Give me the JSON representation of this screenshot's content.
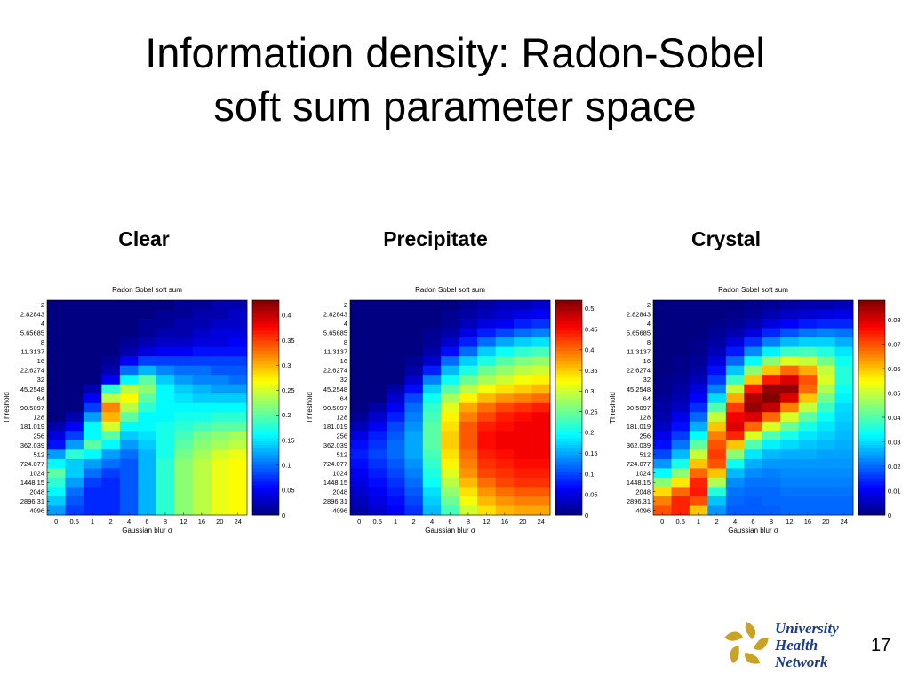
{
  "slide": {
    "title": "Information density: Radon-Sobel\nsoft sum parameter space",
    "page_number": "17",
    "logo": {
      "line1": "University",
      "line2": "Health",
      "line3": "Network",
      "icon": "uhn-emblem-icon"
    }
  },
  "panels": [
    {
      "label": "Clear"
    },
    {
      "label": "Precipitate"
    },
    {
      "label": "Crystal"
    }
  ],
  "chart_data": [
    {
      "type": "heatmap",
      "title": "Radon Sobel soft sum",
      "xlabel": "Gaussian blur σ",
      "ylabel": "Threshold",
      "x_categories": [
        "0",
        "0.5",
        "1",
        "2",
        "4",
        "6",
        "8",
        "12",
        "16",
        "20",
        "24"
      ],
      "y_categories": [
        "2",
        "2.82843",
        "4",
        "5.65685",
        "8",
        "11.3137",
        "16",
        "22.6274",
        "32",
        "45.2548",
        "64",
        "90.5097",
        "128",
        "181.019",
        "256",
        "362.039",
        "512",
        "724.077",
        "1024",
        "1448.15",
        "2048",
        "2896.31",
        "4096"
      ],
      "colorbar": {
        "ticks": [
          "0",
          "0.05",
          "0.1",
          "0.15",
          "0.2",
          "0.25",
          "0.3",
          "0.35",
          "0.4"
        ],
        "tick_values": [
          0,
          0.05,
          0.1,
          0.15,
          0.2,
          0.25,
          0.3,
          0.35,
          0.4
        ],
        "min": 0,
        "max": 0.43
      },
      "colors": {
        "low": "#00008f",
        "high": "#800000"
      },
      "values": [
        [
          0.0,
          0.0,
          0.0,
          0.0,
          0.0,
          0.0,
          0.0,
          0.01,
          0.01,
          0.02,
          0.02
        ],
        [
          0.0,
          0.0,
          0.0,
          0.0,
          0.0,
          0.0,
          0.01,
          0.01,
          0.02,
          0.02,
          0.03
        ],
        [
          0.0,
          0.0,
          0.0,
          0.0,
          0.0,
          0.01,
          0.01,
          0.02,
          0.02,
          0.03,
          0.03
        ],
        [
          0.0,
          0.0,
          0.0,
          0.0,
          0.0,
          0.01,
          0.02,
          0.02,
          0.03,
          0.04,
          0.04
        ],
        [
          0.0,
          0.0,
          0.0,
          0.0,
          0.01,
          0.02,
          0.03,
          0.03,
          0.04,
          0.04,
          0.05
        ],
        [
          0.0,
          0.0,
          0.0,
          0.0,
          0.02,
          0.04,
          0.05,
          0.05,
          0.06,
          0.06,
          0.06
        ],
        [
          0.0,
          0.0,
          0.0,
          0.01,
          0.05,
          0.08,
          0.08,
          0.08,
          0.08,
          0.08,
          0.08
        ],
        [
          0.0,
          0.0,
          0.0,
          0.02,
          0.1,
          0.13,
          0.11,
          0.1,
          0.1,
          0.09,
          0.09
        ],
        [
          0.0,
          0.0,
          0.0,
          0.05,
          0.16,
          0.2,
          0.14,
          0.12,
          0.11,
          0.11,
          0.1
        ],
        [
          0.0,
          0.0,
          0.02,
          0.18,
          0.24,
          0.22,
          0.16,
          0.14,
          0.13,
          0.12,
          0.12
        ],
        [
          0.0,
          0.0,
          0.05,
          0.24,
          0.27,
          0.2,
          0.16,
          0.15,
          0.14,
          0.14,
          0.14
        ],
        [
          0.0,
          0.0,
          0.08,
          0.32,
          0.24,
          0.18,
          0.16,
          0.16,
          0.16,
          0.16,
          0.16
        ],
        [
          0.0,
          0.02,
          0.12,
          0.3,
          0.2,
          0.16,
          0.16,
          0.17,
          0.17,
          0.18,
          0.18
        ],
        [
          0.02,
          0.05,
          0.16,
          0.25,
          0.16,
          0.16,
          0.17,
          0.18,
          0.19,
          0.2,
          0.2
        ],
        [
          0.04,
          0.08,
          0.16,
          0.2,
          0.14,
          0.15,
          0.17,
          0.19,
          0.21,
          0.22,
          0.23
        ],
        [
          0.06,
          0.12,
          0.2,
          0.16,
          0.12,
          0.14,
          0.17,
          0.2,
          0.22,
          0.23,
          0.24
        ],
        [
          0.12,
          0.18,
          0.16,
          0.12,
          0.1,
          0.13,
          0.17,
          0.21,
          0.23,
          0.25,
          0.26
        ],
        [
          0.16,
          0.14,
          0.12,
          0.1,
          0.09,
          0.13,
          0.18,
          0.22,
          0.24,
          0.26,
          0.27
        ],
        [
          0.2,
          0.14,
          0.1,
          0.08,
          0.09,
          0.13,
          0.18,
          0.22,
          0.24,
          0.26,
          0.27
        ],
        [
          0.18,
          0.12,
          0.08,
          0.07,
          0.09,
          0.13,
          0.18,
          0.22,
          0.24,
          0.26,
          0.27
        ],
        [
          0.16,
          0.1,
          0.07,
          0.07,
          0.09,
          0.13,
          0.18,
          0.22,
          0.24,
          0.26,
          0.27
        ],
        [
          0.14,
          0.09,
          0.07,
          0.07,
          0.09,
          0.13,
          0.18,
          0.22,
          0.24,
          0.26,
          0.27
        ],
        [
          0.12,
          0.08,
          0.07,
          0.07,
          0.09,
          0.13,
          0.18,
          0.22,
          0.24,
          0.26,
          0.27
        ]
      ]
    },
    {
      "type": "heatmap",
      "title": "Radon Sobel soft sum",
      "xlabel": "Gaussian blur σ",
      "ylabel": "Threshold",
      "x_categories": [
        "0",
        "0.5",
        "1",
        "2",
        "4",
        "6",
        "8",
        "12",
        "16",
        "20",
        "24"
      ],
      "y_categories": [
        "2",
        "2.82843",
        "4",
        "5.65685",
        "8",
        "11.3137",
        "16",
        "22.6274",
        "32",
        "45.2548",
        "64",
        "90.5097",
        "128",
        "181.019",
        "256",
        "362.039",
        "512",
        "724.077",
        "1024",
        "1448.15",
        "2048",
        "2896.31",
        "4096"
      ],
      "colorbar": {
        "ticks": [
          "0",
          "0.05",
          "0.1",
          "0.15",
          "0.2",
          "0.25",
          "0.3",
          "0.35",
          "0.4",
          "0.45",
          "0.5"
        ],
        "tick_values": [
          0,
          0.05,
          0.1,
          0.15,
          0.2,
          0.25,
          0.3,
          0.35,
          0.4,
          0.45,
          0.5
        ],
        "min": 0,
        "max": 0.52
      },
      "colors": {
        "low": "#00008f",
        "high": "#800000"
      },
      "values": [
        [
          0.0,
          0.0,
          0.0,
          0.0,
          0.0,
          0.0,
          0.01,
          0.02,
          0.03,
          0.03,
          0.04
        ],
        [
          0.0,
          0.0,
          0.0,
          0.0,
          0.0,
          0.01,
          0.02,
          0.03,
          0.04,
          0.05,
          0.06
        ],
        [
          0.0,
          0.0,
          0.0,
          0.0,
          0.0,
          0.01,
          0.03,
          0.05,
          0.06,
          0.08,
          0.09
        ],
        [
          0.0,
          0.0,
          0.0,
          0.0,
          0.01,
          0.02,
          0.05,
          0.08,
          0.1,
          0.12,
          0.13
        ],
        [
          0.0,
          0.0,
          0.0,
          0.0,
          0.01,
          0.04,
          0.08,
          0.12,
          0.15,
          0.17,
          0.18
        ],
        [
          0.0,
          0.0,
          0.0,
          0.0,
          0.02,
          0.07,
          0.12,
          0.17,
          0.2,
          0.22,
          0.23
        ],
        [
          0.0,
          0.0,
          0.0,
          0.01,
          0.04,
          0.12,
          0.17,
          0.21,
          0.24,
          0.26,
          0.27
        ],
        [
          0.0,
          0.0,
          0.0,
          0.02,
          0.08,
          0.16,
          0.21,
          0.25,
          0.27,
          0.29,
          0.3
        ],
        [
          0.0,
          0.0,
          0.0,
          0.04,
          0.13,
          0.2,
          0.25,
          0.28,
          0.3,
          0.32,
          0.33
        ],
        [
          0.0,
          0.0,
          0.02,
          0.07,
          0.17,
          0.24,
          0.29,
          0.32,
          0.34,
          0.35,
          0.36
        ],
        [
          0.0,
          0.0,
          0.04,
          0.1,
          0.2,
          0.28,
          0.33,
          0.36,
          0.38,
          0.39,
          0.4
        ],
        [
          0.0,
          0.02,
          0.06,
          0.12,
          0.22,
          0.31,
          0.37,
          0.4,
          0.42,
          0.43,
          0.44
        ],
        [
          0.01,
          0.04,
          0.08,
          0.13,
          0.23,
          0.33,
          0.39,
          0.42,
          0.44,
          0.45,
          0.46
        ],
        [
          0.03,
          0.06,
          0.1,
          0.14,
          0.24,
          0.34,
          0.41,
          0.44,
          0.45,
          0.46,
          0.46
        ],
        [
          0.05,
          0.08,
          0.11,
          0.15,
          0.24,
          0.35,
          0.41,
          0.45,
          0.46,
          0.46,
          0.46
        ],
        [
          0.07,
          0.09,
          0.12,
          0.15,
          0.24,
          0.35,
          0.41,
          0.45,
          0.46,
          0.46,
          0.46
        ],
        [
          0.08,
          0.1,
          0.12,
          0.15,
          0.23,
          0.34,
          0.4,
          0.44,
          0.45,
          0.46,
          0.46
        ],
        [
          0.07,
          0.09,
          0.11,
          0.14,
          0.22,
          0.33,
          0.39,
          0.43,
          0.44,
          0.45,
          0.45
        ],
        [
          0.06,
          0.08,
          0.1,
          0.13,
          0.21,
          0.31,
          0.38,
          0.42,
          0.43,
          0.44,
          0.44
        ],
        [
          0.05,
          0.07,
          0.09,
          0.12,
          0.2,
          0.29,
          0.36,
          0.4,
          0.42,
          0.43,
          0.43
        ],
        [
          0.04,
          0.06,
          0.08,
          0.11,
          0.18,
          0.27,
          0.34,
          0.38,
          0.4,
          0.41,
          0.41
        ],
        [
          0.03,
          0.05,
          0.07,
          0.1,
          0.17,
          0.25,
          0.32,
          0.36,
          0.38,
          0.39,
          0.39
        ],
        [
          0.02,
          0.04,
          0.06,
          0.09,
          0.16,
          0.23,
          0.3,
          0.34,
          0.36,
          0.37,
          0.37
        ]
      ]
    },
    {
      "type": "heatmap",
      "title": "Radon Sobel soft sum",
      "xlabel": "Gaussian blur σ",
      "ylabel": "Threshold",
      "x_categories": [
        "0",
        "0.5",
        "1",
        "2",
        "4",
        "6",
        "8",
        "12",
        "16",
        "20",
        "24"
      ],
      "y_categories": [
        "2",
        "2.82843",
        "4",
        "5.65685",
        "8",
        "11.3137",
        "16",
        "22.6274",
        "32",
        "45.2548",
        "64",
        "90.5097",
        "128",
        "181.019",
        "256",
        "362.039",
        "512",
        "724.077",
        "1024",
        "1448.15",
        "2048",
        "2896.31",
        "4096"
      ],
      "colorbar": {
        "ticks": [
          "0",
          "0.01",
          "0.02",
          "0.03",
          "0.04",
          "0.05",
          "0.06",
          "0.07",
          "0.08"
        ],
        "tick_values": [
          0,
          0.01,
          0.02,
          0.03,
          0.04,
          0.05,
          0.06,
          0.07,
          0.08
        ],
        "min": 0,
        "max": 0.088
      },
      "colors": {
        "low": "#00008f",
        "high": "#800000"
      },
      "values": [
        [
          0.0,
          0.0,
          0.0,
          0.0,
          0.0,
          0.001,
          0.002,
          0.003,
          0.004,
          0.004,
          0.005
        ],
        [
          0.0,
          0.0,
          0.0,
          0.0,
          0.001,
          0.002,
          0.004,
          0.006,
          0.007,
          0.008,
          0.009
        ],
        [
          0.0,
          0.0,
          0.0,
          0.001,
          0.002,
          0.004,
          0.008,
          0.011,
          0.013,
          0.014,
          0.014
        ],
        [
          0.0,
          0.0,
          0.0,
          0.002,
          0.004,
          0.008,
          0.014,
          0.018,
          0.021,
          0.022,
          0.021
        ],
        [
          0.0,
          0.0,
          0.001,
          0.003,
          0.008,
          0.015,
          0.022,
          0.027,
          0.029,
          0.029,
          0.026
        ],
        [
          0.0,
          0.0,
          0.001,
          0.005,
          0.013,
          0.023,
          0.032,
          0.038,
          0.039,
          0.036,
          0.031
        ],
        [
          0.0,
          0.001,
          0.002,
          0.008,
          0.02,
          0.033,
          0.045,
          0.052,
          0.05,
          0.043,
          0.034
        ],
        [
          0.0,
          0.001,
          0.003,
          0.012,
          0.028,
          0.045,
          0.06,
          0.068,
          0.062,
          0.05,
          0.036
        ],
        [
          0.001,
          0.002,
          0.005,
          0.016,
          0.038,
          0.06,
          0.075,
          0.08,
          0.07,
          0.052,
          0.036
        ],
        [
          0.001,
          0.003,
          0.008,
          0.022,
          0.05,
          0.075,
          0.086,
          0.086,
          0.068,
          0.048,
          0.034
        ],
        [
          0.002,
          0.004,
          0.011,
          0.03,
          0.062,
          0.084,
          0.088,
          0.08,
          0.06,
          0.043,
          0.032
        ],
        [
          0.003,
          0.006,
          0.015,
          0.04,
          0.072,
          0.086,
          0.082,
          0.066,
          0.05,
          0.038,
          0.03
        ],
        [
          0.004,
          0.009,
          0.02,
          0.05,
          0.078,
          0.08,
          0.068,
          0.052,
          0.041,
          0.034,
          0.029
        ],
        [
          0.006,
          0.012,
          0.026,
          0.06,
          0.08,
          0.068,
          0.052,
          0.042,
          0.035,
          0.031,
          0.028
        ],
        [
          0.009,
          0.016,
          0.033,
          0.066,
          0.074,
          0.052,
          0.04,
          0.035,
          0.031,
          0.029,
          0.027
        ],
        [
          0.012,
          0.021,
          0.041,
          0.07,
          0.06,
          0.04,
          0.032,
          0.03,
          0.028,
          0.027,
          0.026
        ],
        [
          0.017,
          0.027,
          0.05,
          0.072,
          0.045,
          0.031,
          0.027,
          0.026,
          0.026,
          0.025,
          0.025
        ],
        [
          0.024,
          0.035,
          0.06,
          0.07,
          0.034,
          0.026,
          0.024,
          0.024,
          0.024,
          0.024,
          0.024
        ],
        [
          0.033,
          0.045,
          0.068,
          0.06,
          0.027,
          0.023,
          0.022,
          0.023,
          0.023,
          0.023,
          0.023
        ],
        [
          0.045,
          0.057,
          0.074,
          0.048,
          0.023,
          0.021,
          0.021,
          0.022,
          0.022,
          0.022,
          0.022
        ],
        [
          0.058,
          0.068,
          0.075,
          0.036,
          0.021,
          0.02,
          0.02,
          0.021,
          0.021,
          0.021,
          0.021
        ],
        [
          0.066,
          0.074,
          0.07,
          0.028,
          0.02,
          0.019,
          0.02,
          0.02,
          0.02,
          0.02,
          0.02
        ],
        [
          0.07,
          0.074,
          0.06,
          0.024,
          0.019,
          0.019,
          0.019,
          0.02,
          0.02,
          0.02,
          0.02
        ]
      ]
    }
  ]
}
